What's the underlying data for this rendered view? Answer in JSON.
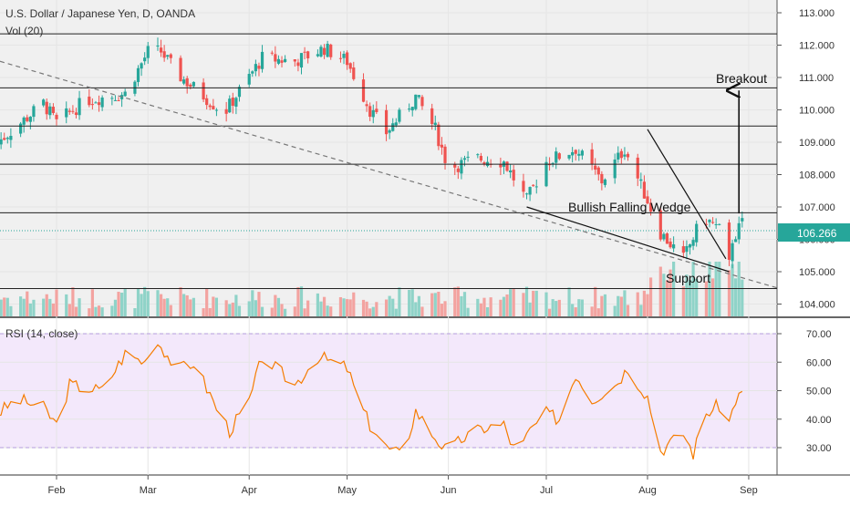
{
  "header": {
    "symbol_title": "U.S. Dollar / Japanese Yen, D, OANDA",
    "volume_label": "Vol (20)",
    "rsi_label": "RSI (14, close)"
  },
  "colors": {
    "up": "#26a69a",
    "down": "#ef5350",
    "up_volume": "#8fd3c8",
    "down_volume": "#f3a3a0",
    "rsi_line": "#f57c00",
    "rsi_band": "#f3e8fb",
    "price_line": "#26a69a",
    "price_tag": "#26a69a",
    "background": "#f0f0f0",
    "grid": "#e5e5e5"
  },
  "chart_data": [
    {
      "type": "candlestick",
      "title": "U.S. Dollar / Japanese Yen, D, OANDA",
      "x_axis": {
        "tick_labels": [
          "Feb",
          "Mar",
          "Apr",
          "May",
          "Jun",
          "Jul",
          "Aug",
          "Sep"
        ]
      },
      "y_axis": {
        "tick_labels": [
          "113.000",
          "112.000",
          "111.000",
          "110.000",
          "109.000",
          "108.000",
          "107.000",
          "106.000",
          "105.000",
          "104.000"
        ],
        "range": [
          103.6,
          113.2
        ]
      },
      "last_price": 106.266,
      "last_price_label": "106.266",
      "horizontal_levels": [
        112.35,
        110.68,
        109.5,
        108.32,
        106.82,
        104.48
      ],
      "annotations": [
        {
          "text": "Breakout"
        },
        {
          "text": "Bullish Falling Wedge"
        },
        {
          "text": "Support"
        }
      ],
      "trend_lines": [
        {
          "name": "long-term-downtrend",
          "style": "dashed",
          "from": [
            "mid-Jan",
            111.5
          ],
          "to": [
            "early-Sep",
            104.5
          ]
        },
        {
          "name": "wedge-upper",
          "style": "solid",
          "from": [
            "Aug 1",
            109.4
          ],
          "to": [
            "Aug 25",
            105.4
          ]
        },
        {
          "name": "wedge-lower",
          "style": "solid",
          "from": [
            "Jun 25",
            107.0
          ],
          "to": [
            "Aug 26",
            105.0
          ]
        },
        {
          "name": "breakout-arrow",
          "style": "arrow",
          "from": [
            "Aug 29",
            106.8
          ],
          "to": [
            "Aug 29",
            110.6
          ]
        }
      ],
      "series": [
        {
          "name": "Price",
          "key_points": [
            [
              "Jan 14",
              109.0
            ],
            [
              "Jan 28",
              110.2
            ],
            [
              "Feb 1",
              109.6
            ],
            [
              "Feb 10",
              110.3
            ],
            [
              "Feb 22",
              110.5
            ],
            [
              "Mar 1",
              111.8
            ],
            [
              "Mar 5",
              111.8
            ],
            [
              "Mar 10",
              111.1
            ],
            [
              "Mar 22",
              110.1
            ],
            [
              "Mar 25",
              110.0
            ],
            [
              "Apr 5",
              111.6
            ],
            [
              "Apr 15",
              111.5
            ],
            [
              "Apr 24",
              111.9
            ],
            [
              "May 1",
              111.5
            ],
            [
              "May 8",
              110.0
            ],
            [
              "May 13",
              109.3
            ],
            [
              "May 22",
              110.4
            ],
            [
              "May 28",
              109.4
            ],
            [
              "Jun 1",
              108.2
            ],
            [
              "Jun 10",
              108.5
            ],
            [
              "Jun 18",
              108.4
            ],
            [
              "Jun 25",
              107.2
            ],
            [
              "Jul 1",
              108.4
            ],
            [
              "Jul 10",
              108.8
            ],
            [
              "Jul 18",
              107.8
            ],
            [
              "Jul 25",
              108.8
            ],
            [
              "Aug 1",
              107.2
            ],
            [
              "Aug 5",
              106.2
            ],
            [
              "Aug 12",
              105.4
            ],
            [
              "Aug 18",
              106.7
            ],
            [
              "Aug 23",
              106.3
            ],
            [
              "Aug 26",
              105.2
            ],
            [
              "Aug 27",
              106.0
            ],
            [
              "Aug 30",
              106.5
            ],
            [
              "Sep 1",
              106.27
            ]
          ]
        }
      ],
      "volume_series": {
        "name": "Vol (20)"
      }
    },
    {
      "type": "line",
      "title": "RSI (14, close)",
      "y_axis": {
        "tick_labels": [
          "70.00",
          "60.00",
          "50.00",
          "40.00",
          "30.00"
        ],
        "range": [
          20,
          75
        ]
      },
      "bands": [
        30,
        70
      ],
      "series": [
        {
          "name": "RSI (14, close)",
          "key_points": [
            [
              "Jan 14",
              42
            ],
            [
              "Jan 20",
              47
            ],
            [
              "Jan 28",
              44
            ],
            [
              "Feb 1",
              38
            ],
            [
              "Feb 5",
              52
            ],
            [
              "Feb 15",
              50
            ],
            [
              "Feb 22",
              63
            ],
            [
              "Feb 28",
              60
            ],
            [
              "Mar 2",
              68
            ],
            [
              "Mar 5",
              66
            ],
            [
              "Mar 10",
              57
            ],
            [
              "Mar 15",
              60
            ],
            [
              "Mar 22",
              44
            ],
            [
              "Mar 26",
              36
            ],
            [
              "Apr 1",
              46
            ],
            [
              "Apr 5",
              62
            ],
            [
              "Apr 10",
              57
            ],
            [
              "Apr 15",
              52
            ],
            [
              "Apr 22",
              62
            ],
            [
              "May 1",
              58
            ],
            [
              "May 5",
              45
            ],
            [
              "May 8",
              38
            ],
            [
              "May 13",
              30
            ],
            [
              "May 18",
              27
            ],
            [
              "May 22",
              43
            ],
            [
              "May 27",
              35
            ],
            [
              "Jun 1",
              28
            ],
            [
              "Jun 5",
              33
            ],
            [
              "Jun 12",
              37
            ],
            [
              "Jun 18",
              38
            ],
            [
              "Jun 22",
              27
            ],
            [
              "Jun 26",
              36
            ],
            [
              "Jul 1",
              42
            ],
            [
              "Jul 5",
              40
            ],
            [
              "Jul 10",
              56
            ],
            [
              "Jul 15",
              47
            ],
            [
              "Jul 22",
              52
            ],
            [
              "Jul 26",
              58
            ],
            [
              "Aug 1",
              48
            ],
            [
              "Aug 5",
              29
            ],
            [
              "Aug 12",
              35
            ],
            [
              "Aug 15",
              28
            ],
            [
              "Aug 19",
              42
            ],
            [
              "Aug 23",
              45
            ],
            [
              "Aug 26",
              39
            ],
            [
              "Aug 28",
              47
            ],
            [
              "Aug 30",
              49
            ],
            [
              "Sep 1",
              47
            ]
          ]
        }
      ]
    }
  ]
}
